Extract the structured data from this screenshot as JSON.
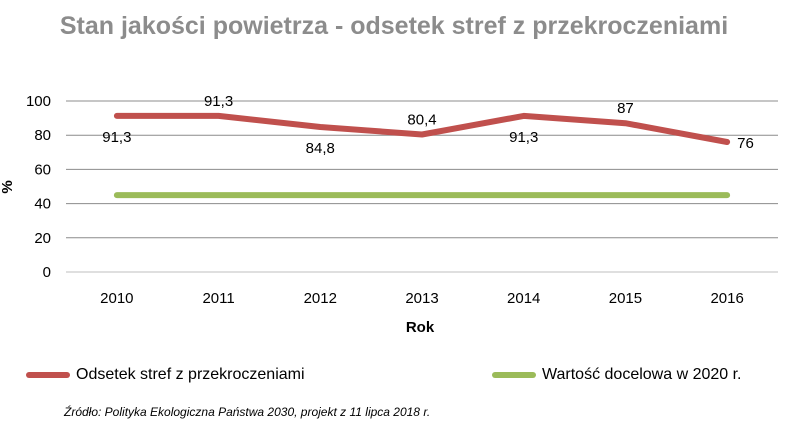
{
  "chart_data": {
    "type": "line",
    "title": "Stan jakości powietrza - odsetek stref z przekroczeniami",
    "xlabel": "Rok",
    "ylabel": "%",
    "categories": [
      "2010",
      "2011",
      "2012",
      "2013",
      "2014",
      "2015",
      "2016"
    ],
    "ylim": [
      0,
      100
    ],
    "yticks": [
      "0",
      "20",
      "40",
      "60",
      "80",
      "100"
    ],
    "grid": true,
    "legend_position": "bottom",
    "series": [
      {
        "name": "Odsetek stref z przekroczeniami",
        "values": [
          91.3,
          91.3,
          84.8,
          80.4,
          91.3,
          87,
          76
        ],
        "labels": [
          "91,3",
          "91,3",
          "84,8",
          "80,4",
          "91,3",
          "87",
          "76"
        ],
        "color": "#c0504d"
      },
      {
        "name": "Wartość docelowa w 2020 r.",
        "values": [
          45,
          45,
          45,
          45,
          45,
          45,
          45
        ],
        "color": "#9bbb59"
      }
    ]
  },
  "source_note": "Źródło: Polityka Ekologiczna Państwa 2030, projekt z 11 lipca 2018 r."
}
